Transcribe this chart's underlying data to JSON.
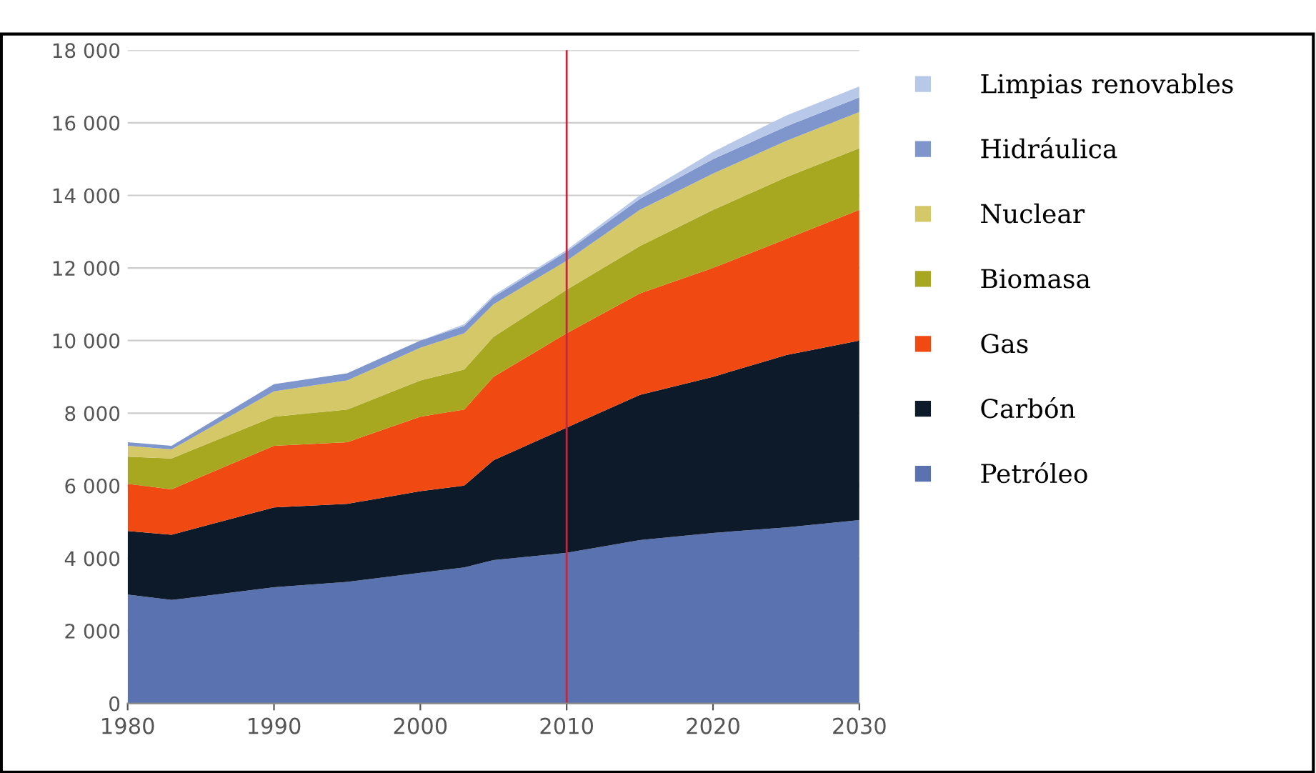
{
  "chart_data": {
    "type": "area",
    "stacked": true,
    "x": [
      1980,
      1983,
      1990,
      1995,
      2000,
      2003,
      2005,
      2010,
      2015,
      2020,
      2025,
      2030
    ],
    "series": [
      {
        "name": "Petróleo",
        "color": "#5a72b0",
        "values": [
          3000,
          2850,
          3200,
          3350,
          3600,
          3750,
          3950,
          4150,
          4500,
          4700,
          4850,
          5050
        ]
      },
      {
        "name": "Carbón",
        "color": "#0d1a2a",
        "values": [
          1750,
          1800,
          2200,
          2150,
          2250,
          2250,
          2750,
          3450,
          4000,
          4300,
          4750,
          4950
        ]
      },
      {
        "name": "Gas",
        "color": "#f04a12",
        "values": [
          1300,
          1250,
          1700,
          1700,
          2050,
          2100,
          2300,
          2600,
          2800,
          3000,
          3200,
          3600
        ]
      },
      {
        "name": "Biomasa",
        "color": "#a8a820",
        "values": [
          750,
          850,
          800,
          900,
          1000,
          1100,
          1100,
          1200,
          1300,
          1600,
          1700,
          1700
        ]
      },
      {
        "name": "Nuclear",
        "color": "#d4c868",
        "values": [
          300,
          250,
          700,
          800,
          900,
          1000,
          900,
          800,
          1000,
          1000,
          1000,
          1000
        ]
      },
      {
        "name": "Hidráulica",
        "color": "#7e96cc",
        "values": [
          100,
          100,
          200,
          200,
          200,
          200,
          200,
          250,
          300,
          400,
          400,
          400
        ]
      },
      {
        "name": "Limpias renovables",
        "color": "#b8c8e8",
        "values": [
          0,
          0,
          0,
          0,
          0,
          50,
          50,
          50,
          100,
          200,
          300,
          300
        ]
      }
    ],
    "xlim": [
      1980,
      2030
    ],
    "xticks": [
      1980,
      1990,
      2000,
      2010,
      2020,
      2030
    ],
    "ylim": [
      0,
      18000
    ],
    "yticks": [
      {
        "value": 0,
        "label": "0"
      },
      {
        "value": 2000,
        "label": "2 000"
      },
      {
        "value": 4000,
        "label": "4 000"
      },
      {
        "value": 6000,
        "label": "6 000"
      },
      {
        "value": 8000,
        "label": "8 000"
      },
      {
        "value": 10000,
        "label": "10 000"
      },
      {
        "value": 12000,
        "label": "12 000"
      },
      {
        "value": 14000,
        "label": "14 000"
      },
      {
        "value": 16000,
        "label": "16 000"
      },
      {
        "value": 18000,
        "label": "18 000"
      }
    ],
    "grid": "y",
    "legend": "right",
    "ref_lines": [
      {
        "axis": "x",
        "value": 2010,
        "color": "#c0283c"
      }
    ]
  }
}
